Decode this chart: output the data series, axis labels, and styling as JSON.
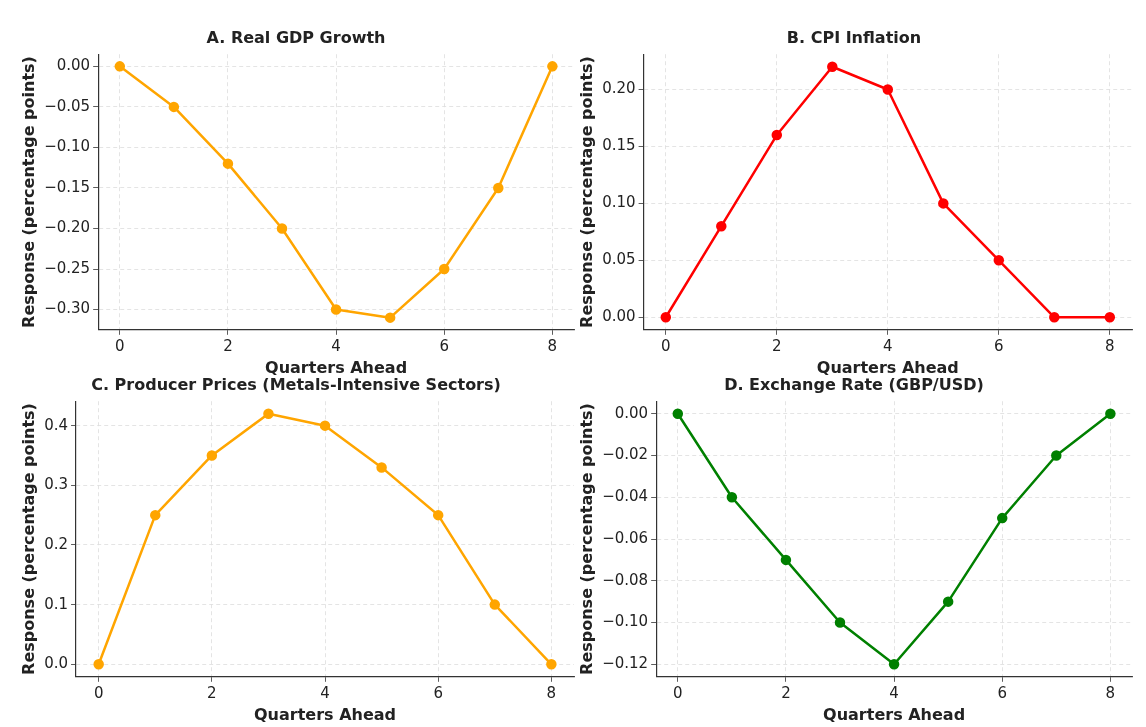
{
  "chart_data": [
    {
      "type": "line",
      "title": "A. Real GDP Growth",
      "xlabel": "Quarters Ahead",
      "ylabel": "Response (percentage points)",
      "x": [
        0,
        1,
        2,
        3,
        4,
        5,
        6,
        7,
        8
      ],
      "series": [
        {
          "color": "#ffa500",
          "values": [
            0,
            -0.05,
            -0.12,
            -0.2,
            -0.3,
            -0.31,
            -0.25,
            -0.15,
            0
          ]
        }
      ],
      "xlim": [
        -0.4,
        8.4
      ],
      "xticks": [
        0,
        2,
        4,
        6,
        8
      ],
      "ylim": [
        -0.325,
        0.015
      ],
      "yticks": [
        {
          "value": 0,
          "label": "0.00"
        },
        {
          "value": -0.05,
          "label": "−0.05"
        },
        {
          "value": -0.1,
          "label": "−0.10"
        },
        {
          "value": -0.15,
          "label": "−0.15"
        },
        {
          "value": -0.2,
          "label": "−0.20"
        },
        {
          "value": -0.25,
          "label": "−0.25"
        },
        {
          "value": -0.3,
          "label": "−0.30"
        }
      ],
      "grid": true,
      "marker": "circle",
      "line_style": "solid",
      "legend": false
    },
    {
      "type": "line",
      "title": "B. CPI Inflation",
      "xlabel": "Quarters Ahead",
      "ylabel": "Response (percentage points)",
      "x": [
        0,
        1,
        2,
        3,
        4,
        5,
        6,
        7,
        8
      ],
      "series": [
        {
          "color": "#ff0000",
          "values": [
            0,
            0.08,
            0.16,
            0.22,
            0.2,
            0.1,
            0.05,
            0,
            0
          ]
        }
      ],
      "xlim": [
        -0.4,
        8.4
      ],
      "xticks": [
        0,
        2,
        4,
        6,
        8
      ],
      "ylim": [
        -0.011,
        0.231
      ],
      "yticks": [
        {
          "value": 0,
          "label": "0.00"
        },
        {
          "value": 0.05,
          "label": "0.05"
        },
        {
          "value": 0.1,
          "label": "0.10"
        },
        {
          "value": 0.15,
          "label": "0.15"
        },
        {
          "value": 0.2,
          "label": "0.20"
        }
      ],
      "grid": true,
      "marker": "circle",
      "line_style": "solid",
      "legend": false
    },
    {
      "type": "line",
      "title": "C. Producer Prices (Metals-Intensive Sectors)",
      "xlabel": "Quarters Ahead",
      "ylabel": "Response (percentage points)",
      "x": [
        0,
        1,
        2,
        3,
        4,
        5,
        6,
        7,
        8
      ],
      "series": [
        {
          "color": "#ffa500",
          "values": [
            0,
            0.25,
            0.35,
            0.42,
            0.4,
            0.33,
            0.25,
            0.1,
            0
          ]
        }
      ],
      "xlim": [
        -0.4,
        8.4
      ],
      "xticks": [
        0,
        2,
        4,
        6,
        8
      ],
      "ylim": [
        -0.021,
        0.441
      ],
      "yticks": [
        {
          "value": 0,
          "label": "0.0"
        },
        {
          "value": 0.1,
          "label": "0.1"
        },
        {
          "value": 0.2,
          "label": "0.2"
        },
        {
          "value": 0.3,
          "label": "0.3"
        },
        {
          "value": 0.4,
          "label": "0.4"
        }
      ],
      "grid": true,
      "marker": "circle",
      "line_style": "solid",
      "legend": false
    },
    {
      "type": "line",
      "title": "D. Exchange Rate (GBP/USD)",
      "xlabel": "Quarters Ahead",
      "ylabel": "Response (percentage points)",
      "x": [
        0,
        1,
        2,
        3,
        4,
        5,
        6,
        7,
        8
      ],
      "series": [
        {
          "color": "#008000",
          "values": [
            0,
            -0.04,
            -0.07,
            -0.1,
            -0.12,
            -0.09,
            -0.05,
            -0.02,
            0
          ]
        }
      ],
      "xlim": [
        -0.4,
        8.4
      ],
      "xticks": [
        0,
        2,
        4,
        6,
        8
      ],
      "ylim": [
        -0.126,
        0.006
      ],
      "yticks": [
        {
          "value": 0,
          "label": "0.00"
        },
        {
          "value": -0.02,
          "label": "−0.02"
        },
        {
          "value": -0.04,
          "label": "−0.04"
        },
        {
          "value": -0.06,
          "label": "−0.06"
        },
        {
          "value": -0.08,
          "label": "−0.08"
        },
        {
          "value": -0.1,
          "label": "−0.10"
        },
        {
          "value": -0.12,
          "label": "−0.12"
        }
      ],
      "grid": true,
      "marker": "circle",
      "line_style": "solid",
      "legend": false
    }
  ]
}
